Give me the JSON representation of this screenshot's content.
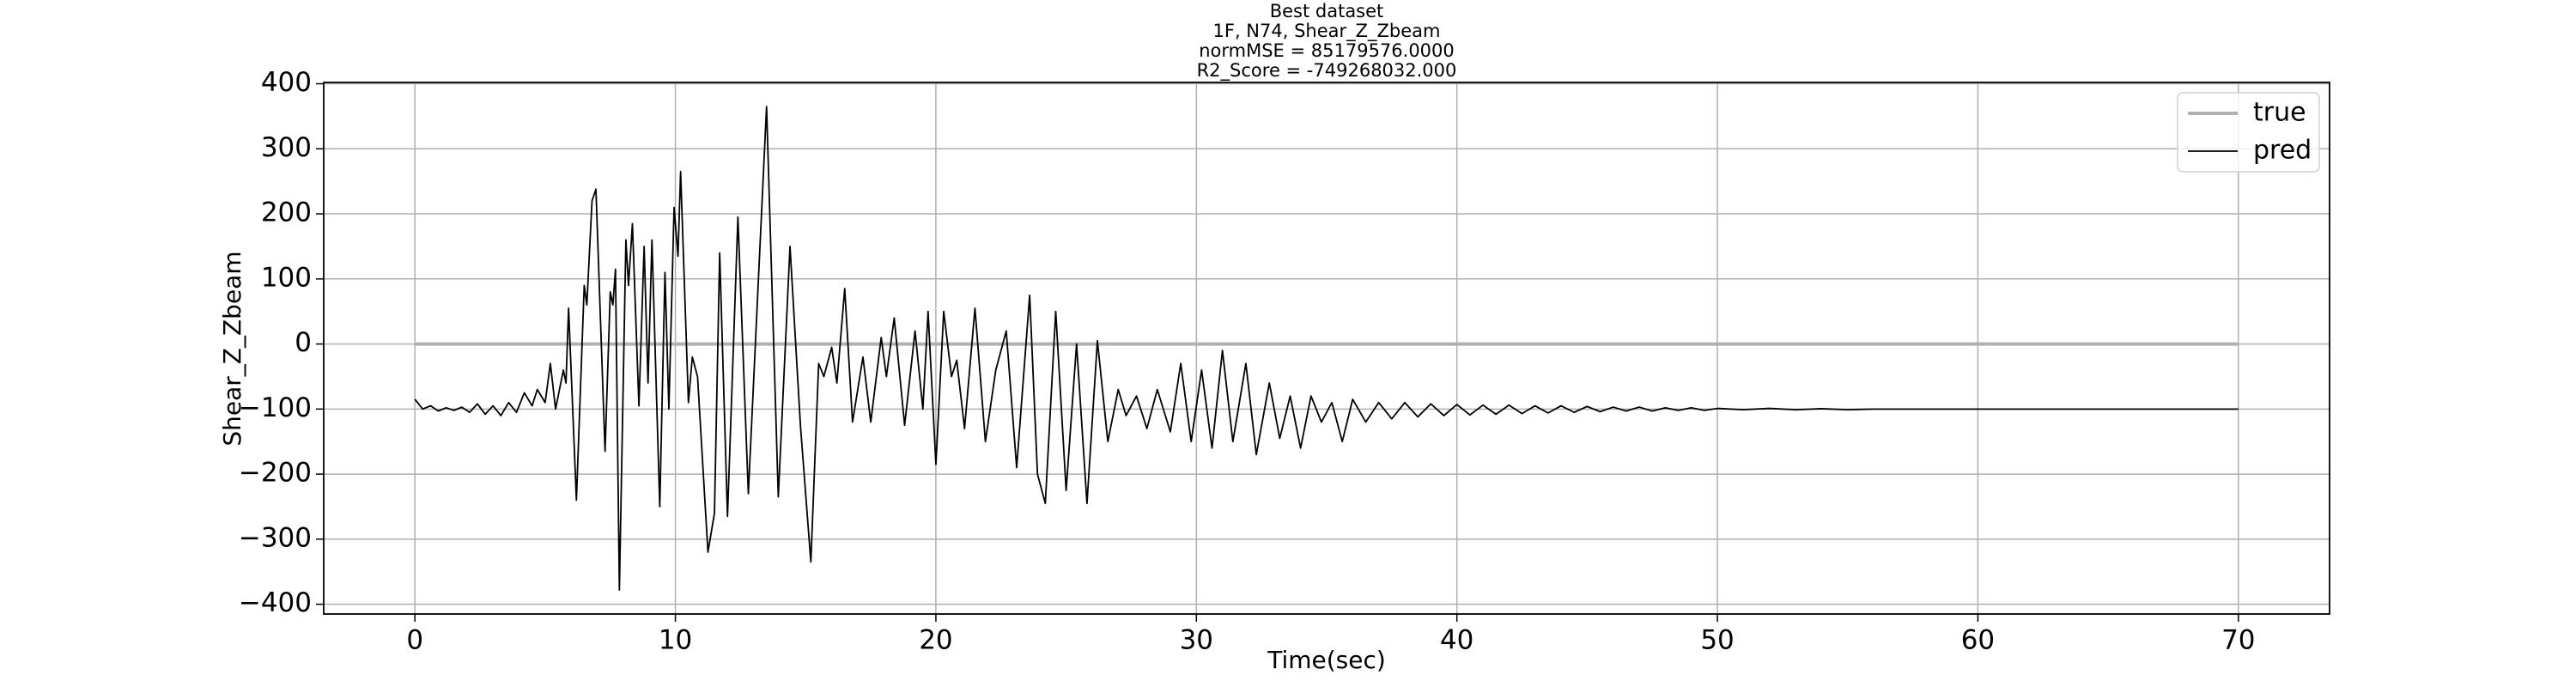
{
  "chart_data": {
    "type": "line",
    "title": [
      "Best dataset",
      "1F, N74, Shear_Z_Zbeam",
      "normMSE = 85179576.0000",
      "R2_Score = -749268032.000"
    ],
    "xlabel": "Time(sec)",
    "ylabel": "Shear_Z_Zbeam",
    "xlim": [
      -3.5,
      73.5
    ],
    "ylim": [
      -415,
      402
    ],
    "xticks": [
      0,
      10,
      20,
      30,
      40,
      50,
      60,
      70
    ],
    "yticks": [
      {
        "value": -400,
        "label": "−400"
      },
      {
        "value": -300,
        "label": "−300"
      },
      {
        "value": -200,
        "label": "−200"
      },
      {
        "value": -100,
        "label": "−100"
      },
      0,
      100,
      200,
      300,
      400
    ],
    "grid": true,
    "legend": "upper right",
    "series": [
      {
        "name": "true",
        "color": "#b0b0b0",
        "x": [
          0,
          70
        ],
        "values": [
          0,
          0
        ]
      },
      {
        "name": "pred",
        "color": "#000000",
        "x": [
          0,
          0.3,
          0.6,
          0.9,
          1.2,
          1.5,
          1.8,
          2.1,
          2.4,
          2.7,
          3.0,
          3.3,
          3.6,
          3.9,
          4.2,
          4.5,
          4.7,
          5.0,
          5.2,
          5.4,
          5.7,
          5.8,
          5.9,
          6.2,
          6.5,
          6.6,
          6.8,
          6.95,
          7.3,
          7.5,
          7.6,
          7.7,
          7.85,
          8.1,
          8.2,
          8.35,
          8.6,
          8.8,
          8.95,
          9.1,
          9.4,
          9.6,
          9.75,
          9.95,
          10.1,
          10.2,
          10.5,
          10.65,
          10.85,
          11.25,
          11.5,
          11.7,
          12.0,
          12.4,
          12.8,
          13.5,
          13.95,
          14.4,
          14.8,
          15.2,
          15.5,
          15.7,
          16.0,
          16.2,
          16.5,
          16.8,
          17.2,
          17.5,
          17.9,
          18.1,
          18.4,
          18.8,
          19.2,
          19.5,
          19.7,
          20.0,
          20.3,
          20.6,
          20.8,
          21.1,
          21.5,
          21.9,
          22.3,
          22.7,
          23.1,
          23.6,
          23.9,
          24.2,
          24.6,
          25.0,
          25.4,
          25.8,
          26.2,
          26.6,
          27.0,
          27.3,
          27.7,
          28.1,
          28.5,
          29.0,
          29.4,
          29.8,
          30.2,
          30.6,
          31.0,
          31.4,
          31.9,
          32.3,
          32.8,
          33.2,
          33.6,
          34.0,
          34.4,
          34.8,
          35.2,
          35.6,
          36.0,
          36.5,
          37.0,
          37.5,
          38.0,
          38.5,
          39,
          39.5,
          40,
          40.5,
          41,
          41.5,
          42,
          42.5,
          43,
          43.5,
          44,
          44.5,
          45,
          45.5,
          46,
          46.5,
          47,
          47.5,
          48,
          48.5,
          49,
          49.5,
          50,
          51,
          52,
          53,
          54,
          55,
          56,
          58,
          60,
          70
        ],
        "values": [
          -85,
          -100,
          -95,
          -103,
          -98,
          -102,
          -97,
          -105,
          -92,
          -108,
          -95,
          -110,
          -90,
          -105,
          -75,
          -95,
          -70,
          -90,
          -30,
          -100,
          -40,
          -60,
          55,
          -240,
          90,
          60,
          220,
          238,
          -165,
          80,
          60,
          115,
          -378,
          160,
          90,
          185,
          -95,
          150,
          -60,
          160,
          -250,
          110,
          -100,
          210,
          135,
          265,
          -90,
          -20,
          -50,
          -320,
          -260,
          140,
          -265,
          195,
          -230,
          365,
          -235,
          150,
          -125,
          -335,
          -30,
          -50,
          -5,
          -60,
          85,
          -120,
          -20,
          -120,
          10,
          -50,
          40,
          -125,
          20,
          -100,
          50,
          -185,
          50,
          -50,
          -25,
          -130,
          55,
          -150,
          -40,
          20,
          -190,
          75,
          -200,
          -245,
          50,
          -225,
          0,
          -245,
          5,
          -150,
          -70,
          -110,
          -80,
          -130,
          -70,
          -135,
          -30,
          -150,
          -40,
          -160,
          -10,
          -150,
          -30,
          -170,
          -60,
          -145,
          -80,
          -160,
          -80,
          -120,
          -90,
          -150,
          -85,
          -120,
          -90,
          -115,
          -90,
          -112,
          -92,
          -110,
          -93,
          -109,
          -94,
          -108,
          -94,
          -107,
          -95,
          -106,
          -95,
          -105,
          -96,
          -104,
          -97,
          -103,
          -97,
          -103,
          -98,
          -102,
          -98,
          -102,
          -99,
          -101,
          -99,
          -101,
          -99.5,
          -101,
          -100,
          -100,
          -100,
          -100
        ]
      }
    ]
  }
}
